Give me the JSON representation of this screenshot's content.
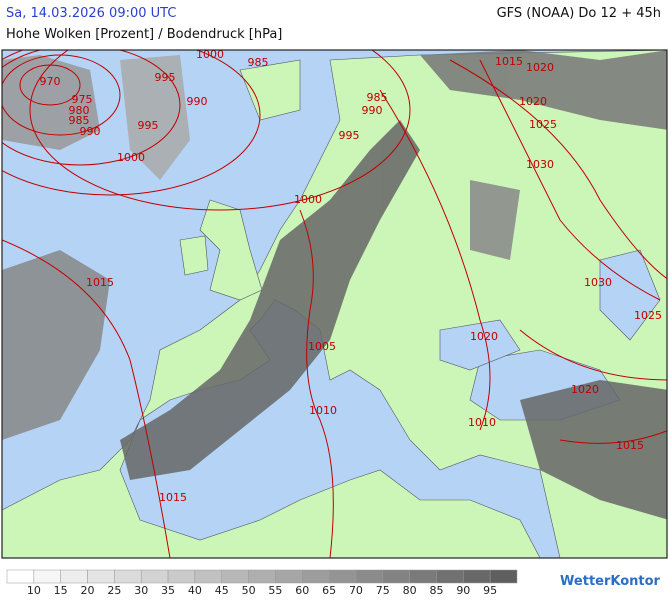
{
  "header": {
    "time": "Sa, 14.03.2026 09:00 UTC",
    "model": "GFS (NOAA) Do 12 + 45h",
    "title": "Hohe Wolken [Prozent] / Bodendruck [hPa]"
  },
  "isobar_labels": [
    1000,
    985,
    995,
    990,
    970,
    975,
    980,
    985,
    990,
    995,
    1000,
    985,
    990,
    995,
    1015,
    1020,
    1020,
    1025,
    1030,
    1000,
    1015,
    1030,
    1025,
    1020,
    1005,
    1020,
    1010,
    1010,
    1015,
    1015
  ],
  "legend": {
    "labels": [
      10,
      15,
      20,
      25,
      30,
      35,
      40,
      45,
      50,
      55,
      60,
      65,
      70,
      75,
      80,
      85,
      90,
      95
    ]
  },
  "logo": "WetterKontor"
}
